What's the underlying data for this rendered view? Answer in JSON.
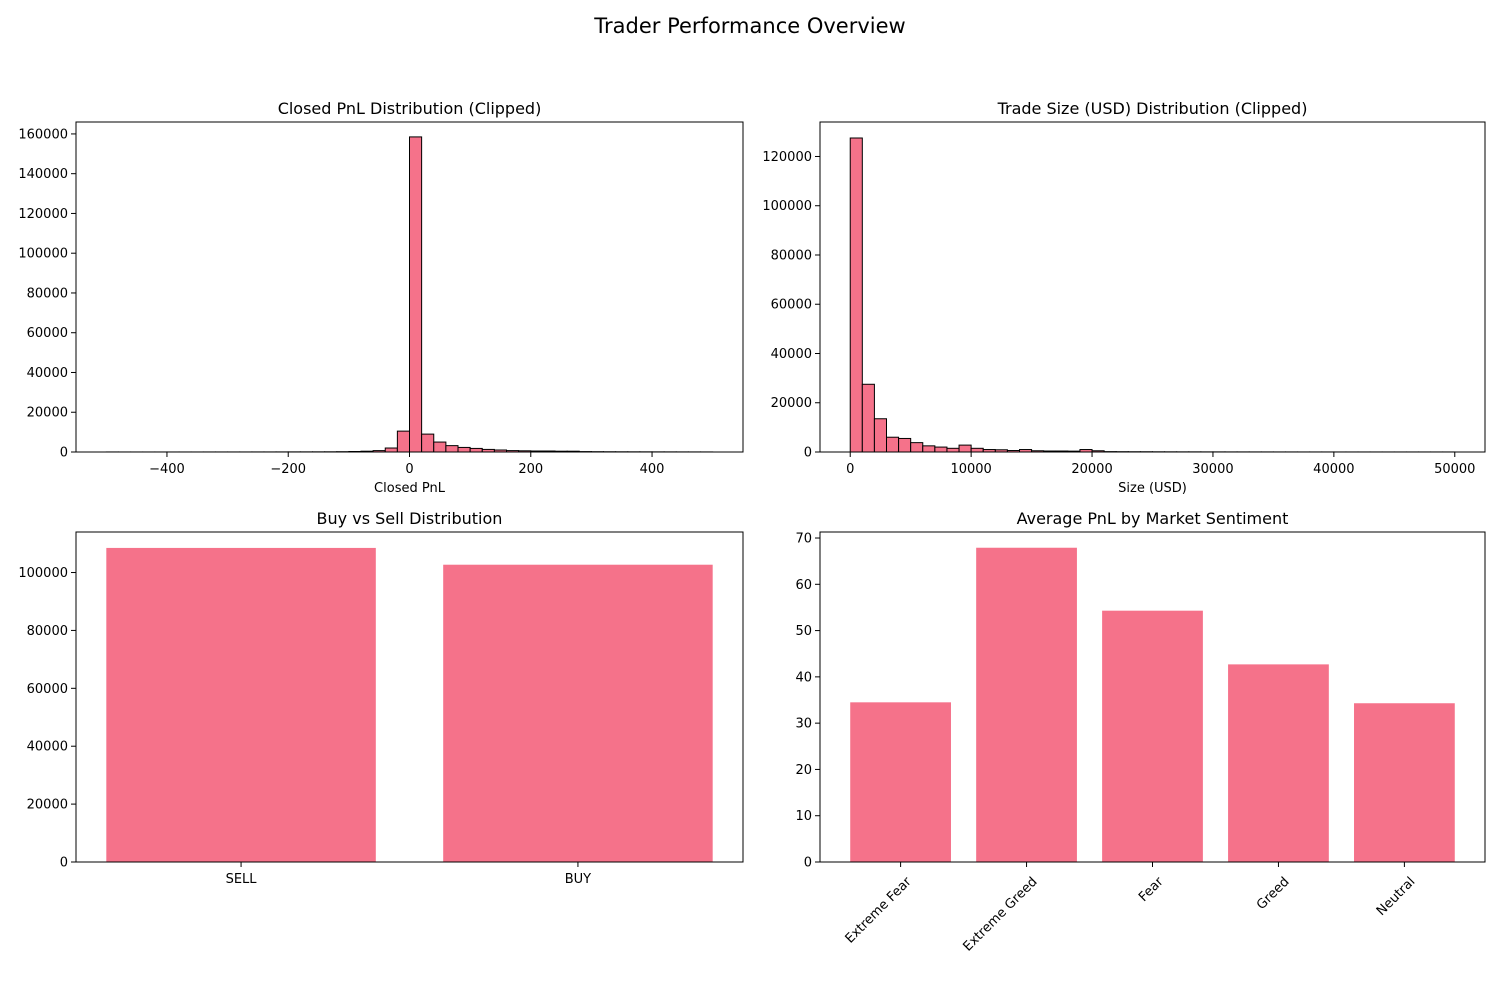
{
  "figure": {
    "title": "Trader Performance Overview"
  },
  "colors": {
    "bar": "#f5728a",
    "edge": "#000000"
  },
  "chart_data": [
    {
      "type": "bar",
      "subtype": "histogram",
      "title": "Closed PnL Distribution (Clipped)",
      "xlabel": "Closed PnL",
      "ylabel": "",
      "xlim": [
        -550,
        550
      ],
      "ylim": [
        0,
        166000
      ],
      "xticks": [
        -400,
        -200,
        0,
        200,
        400
      ],
      "xtick_labels": [
        "−400",
        "−200",
        "0",
        "200",
        "400"
      ],
      "yticks": [
        0,
        20000,
        40000,
        60000,
        80000,
        100000,
        120000,
        140000,
        160000
      ],
      "ytick_labels": [
        "0",
        "20000",
        "40000",
        "60000",
        "80000",
        "100000",
        "120000",
        "140000",
        "160000"
      ],
      "bin_width": 20,
      "bins": [
        {
          "x0": -500,
          "count": 30
        },
        {
          "x0": -480,
          "count": 20
        },
        {
          "x0": -460,
          "count": 20
        },
        {
          "x0": -440,
          "count": 20
        },
        {
          "x0": -420,
          "count": 20
        },
        {
          "x0": -400,
          "count": 20
        },
        {
          "x0": -380,
          "count": 20
        },
        {
          "x0": -360,
          "count": 20
        },
        {
          "x0": -340,
          "count": 30
        },
        {
          "x0": -320,
          "count": 30
        },
        {
          "x0": -300,
          "count": 30
        },
        {
          "x0": -280,
          "count": 30
        },
        {
          "x0": -260,
          "count": 40
        },
        {
          "x0": -240,
          "count": 40
        },
        {
          "x0": -220,
          "count": 50
        },
        {
          "x0": -200,
          "count": 60
        },
        {
          "x0": -180,
          "count": 70
        },
        {
          "x0": -160,
          "count": 80
        },
        {
          "x0": -140,
          "count": 100
        },
        {
          "x0": -120,
          "count": 150
        },
        {
          "x0": -100,
          "count": 250
        },
        {
          "x0": -80,
          "count": 400
        },
        {
          "x0": -60,
          "count": 700
        },
        {
          "x0": -40,
          "count": 2000
        },
        {
          "x0": -20,
          "count": 10500
        },
        {
          "x0": 0,
          "count": 158500
        },
        {
          "x0": 20,
          "count": 9000
        },
        {
          "x0": 40,
          "count": 5000
        },
        {
          "x0": 60,
          "count": 3200
        },
        {
          "x0": 80,
          "count": 2300
        },
        {
          "x0": 100,
          "count": 1800
        },
        {
          "x0": 120,
          "count": 1300
        },
        {
          "x0": 140,
          "count": 1000
        },
        {
          "x0": 160,
          "count": 700
        },
        {
          "x0": 180,
          "count": 600
        },
        {
          "x0": 200,
          "count": 500
        },
        {
          "x0": 220,
          "count": 500
        },
        {
          "x0": 240,
          "count": 400
        },
        {
          "x0": 260,
          "count": 400
        },
        {
          "x0": 280,
          "count": 200
        },
        {
          "x0": 300,
          "count": 150
        },
        {
          "x0": 320,
          "count": 120
        },
        {
          "x0": 340,
          "count": 100
        },
        {
          "x0": 360,
          "count": 90
        },
        {
          "x0": 380,
          "count": 80
        },
        {
          "x0": 400,
          "count": 70
        },
        {
          "x0": 420,
          "count": 60
        },
        {
          "x0": 440,
          "count": 50
        },
        {
          "x0": 460,
          "count": 40
        },
        {
          "x0": 480,
          "count": 40
        }
      ]
    },
    {
      "type": "bar",
      "subtype": "histogram",
      "title": "Trade Size (USD) Distribution (Clipped)",
      "xlabel": "Size (USD)",
      "ylabel": "",
      "xlim": [
        -2500,
        52500
      ],
      "ylim": [
        0,
        134000
      ],
      "xticks": [
        0,
        10000,
        20000,
        30000,
        40000,
        50000
      ],
      "xtick_labels": [
        "0",
        "10000",
        "20000",
        "30000",
        "40000",
        "50000"
      ],
      "yticks": [
        0,
        20000,
        40000,
        60000,
        80000,
        100000,
        120000
      ],
      "ytick_labels": [
        "0",
        "20000",
        "40000",
        "60000",
        "80000",
        "100000",
        "120000"
      ],
      "bin_width": 1000,
      "bins": [
        {
          "x0": 0,
          "count": 127500
        },
        {
          "x0": 1000,
          "count": 27500
        },
        {
          "x0": 2000,
          "count": 13500
        },
        {
          "x0": 3000,
          "count": 6000
        },
        {
          "x0": 4000,
          "count": 5500
        },
        {
          "x0": 5000,
          "count": 3800
        },
        {
          "x0": 6000,
          "count": 2500
        },
        {
          "x0": 7000,
          "count": 2000
        },
        {
          "x0": 8000,
          "count": 1500
        },
        {
          "x0": 9000,
          "count": 2800
        },
        {
          "x0": 10000,
          "count": 1500
        },
        {
          "x0": 11000,
          "count": 1000
        },
        {
          "x0": 12000,
          "count": 900
        },
        {
          "x0": 13000,
          "count": 600
        },
        {
          "x0": 14000,
          "count": 1000
        },
        {
          "x0": 15000,
          "count": 500
        },
        {
          "x0": 16000,
          "count": 400
        },
        {
          "x0": 17000,
          "count": 400
        },
        {
          "x0": 18000,
          "count": 350
        },
        {
          "x0": 19000,
          "count": 1000
        },
        {
          "x0": 20000,
          "count": 500
        },
        {
          "x0": 21000,
          "count": 150
        },
        {
          "x0": 22000,
          "count": 120
        },
        {
          "x0": 23000,
          "count": 100
        },
        {
          "x0": 24000,
          "count": 100
        },
        {
          "x0": 25000,
          "count": 80
        },
        {
          "x0": 26000,
          "count": 70
        },
        {
          "x0": 27000,
          "count": 60
        },
        {
          "x0": 28000,
          "count": 60
        },
        {
          "x0": 29000,
          "count": 50
        },
        {
          "x0": 30000,
          "count": 50
        },
        {
          "x0": 31000,
          "count": 40
        },
        {
          "x0": 32000,
          "count": 40
        },
        {
          "x0": 33000,
          "count": 35
        },
        {
          "x0": 34000,
          "count": 35
        },
        {
          "x0": 35000,
          "count": 30
        },
        {
          "x0": 36000,
          "count": 30
        },
        {
          "x0": 37000,
          "count": 25
        },
        {
          "x0": 38000,
          "count": 25
        },
        {
          "x0": 39000,
          "count": 25
        },
        {
          "x0": 40000,
          "count": 20
        },
        {
          "x0": 41000,
          "count": 20
        },
        {
          "x0": 42000,
          "count": 20
        },
        {
          "x0": 43000,
          "count": 20
        },
        {
          "x0": 44000,
          "count": 20
        },
        {
          "x0": 45000,
          "count": 20
        },
        {
          "x0": 46000,
          "count": 20
        },
        {
          "x0": 47000,
          "count": 20
        },
        {
          "x0": 48000,
          "count": 20
        },
        {
          "x0": 49000,
          "count": 20
        }
      ]
    },
    {
      "type": "bar",
      "title": "Buy vs Sell Distribution",
      "xlabel": "",
      "ylabel": "",
      "categories": [
        "SELL",
        "BUY"
      ],
      "values": [
        108500,
        102700
      ],
      "ylim": [
        0,
        114000
      ],
      "yticks": [
        0,
        20000,
        40000,
        60000,
        80000,
        100000
      ],
      "ytick_labels": [
        "0",
        "20000",
        "40000",
        "60000",
        "80000",
        "100000"
      ],
      "xtick_rotation": 0
    },
    {
      "type": "bar",
      "title": "Average PnL by Market Sentiment",
      "xlabel": "",
      "ylabel": "",
      "categories": [
        "Extreme Fear",
        "Extreme Greed",
        "Fear",
        "Greed",
        "Neutral"
      ],
      "values": [
        34.5,
        67.9,
        54.3,
        42.7,
        34.3
      ],
      "ylim": [
        0,
        71.3
      ],
      "yticks": [
        0,
        10,
        20,
        30,
        40,
        50,
        60,
        70
      ],
      "ytick_labels": [
        "0",
        "10",
        "20",
        "30",
        "40",
        "50",
        "60",
        "70"
      ],
      "xtick_rotation": -45
    }
  ]
}
